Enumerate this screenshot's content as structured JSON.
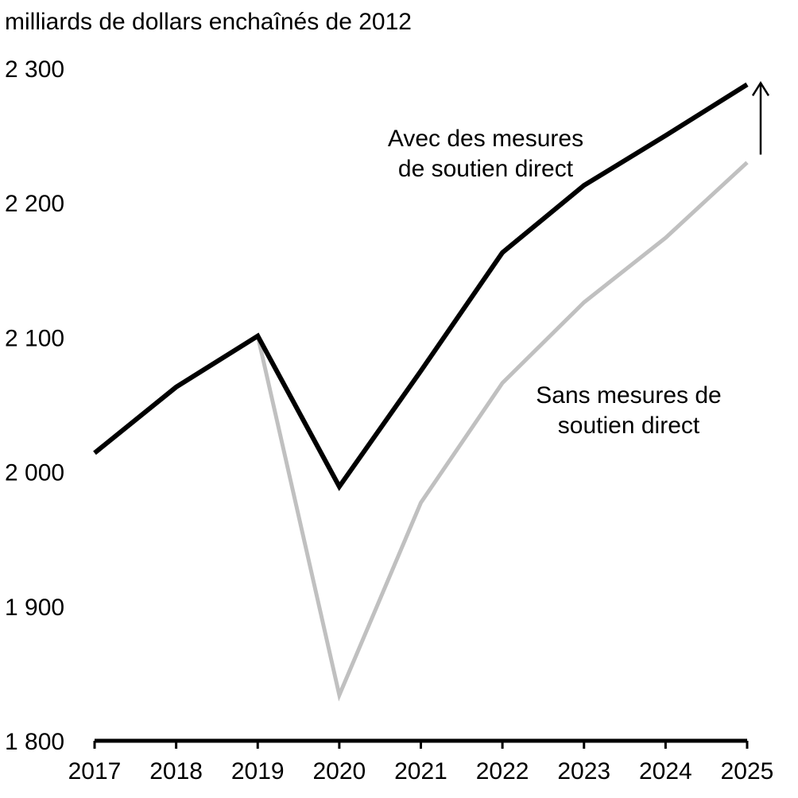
{
  "chart_data": {
    "type": "line",
    "ylabel": "milliards de dollars enchaînés de 2012",
    "x": [
      "2017",
      "2018",
      "2019",
      "2020",
      "2021",
      "2022",
      "2023",
      "2024",
      "2025"
    ],
    "ylim": [
      1800,
      2300
    ],
    "yticks": [
      1800,
      1900,
      2000,
      2100,
      2200,
      2300
    ],
    "ytick_labels": [
      "1 800",
      "1 900",
      "2 000",
      "2 100",
      "2 200",
      "2 300"
    ],
    "grid": false,
    "series": [
      {
        "key": "avec",
        "color": "#000000",
        "values": [
          2014,
          2063,
          2101,
          1989,
          2075,
          2163,
          2213,
          2250,
          2288
        ]
      },
      {
        "key": "sans",
        "color": "#c0c0c0",
        "values": [
          2014,
          2063,
          2101,
          1834,
          1977,
          2066,
          2126,
          2174,
          2230
        ]
      }
    ],
    "annotations": [
      {
        "lines": [
          "Avec des mesures",
          "de soutien direct"
        ]
      },
      {
        "lines": [
          "Sans mesures de",
          "soutien direct"
        ]
      }
    ],
    "arrow": {
      "from_series": "sans",
      "to_series": "avec",
      "at": "2025",
      "direction": "up"
    }
  }
}
